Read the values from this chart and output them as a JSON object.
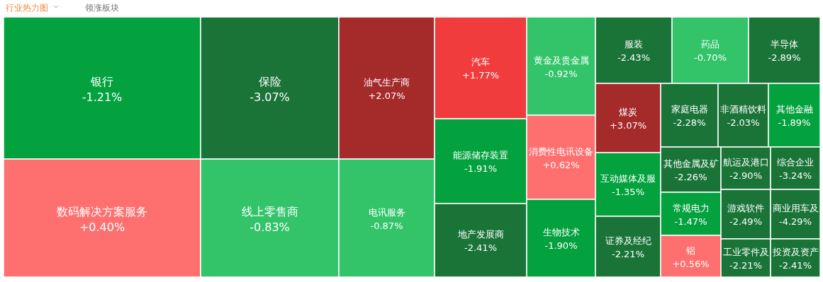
{
  "chart_data": {
    "type": "other",
    "title": "行业热力图",
    "subtitle": "领涨板块",
    "categories": [
      "银行",
      "数码解决方案服务",
      "保险",
      "线上零售商",
      "油气生产商",
      "电讯服务",
      "汽车",
      "能源储存装置",
      "地产发展商",
      "黄金及贵金属",
      "消费性电讯设备",
      "生物技术",
      "服装",
      "药品",
      "半导体",
      "煤炭",
      "互动媒体及服",
      "证券及经纪",
      "家庭电器",
      "非酒精饮料",
      "其他金融",
      "其他金属及矿",
      "常规电力",
      "铝",
      "航运及港口",
      "游戏软件",
      "工业零件及",
      "综合企业",
      "商业用车及",
      "投资及资产"
    ],
    "values": [
      -1.21,
      0.4,
      -3.07,
      -0.83,
      2.07,
      -0.87,
      1.77,
      -1.91,
      -2.41,
      -0.92,
      0.62,
      -1.9,
      -2.43,
      -0.7,
      -2.89,
      3.07,
      -1.35,
      -2.21,
      -2.28,
      -2.03,
      -1.89,
      -2.26,
      -1.47,
      0.56,
      -2.9,
      -2.49,
      -2.21,
      -3.24,
      -4.29,
      -2.41
    ],
    "value_labels": [
      "-1.21%",
      "+0.40%",
      "-3.07%",
      "-0.83%",
      "+2.07%",
      "-0.87%",
      "+1.77%",
      "-1.91%",
      "-2.41%",
      "-0.92%",
      "+0.62%",
      "-1.90%",
      "-2.43%",
      "-0.70%",
      "-2.89%",
      "+3.07%",
      "-1.35%",
      "-2.21%",
      "-2.28%",
      "-2.03%",
      "-1.89%",
      "-2.26%",
      "-1.47%",
      "+0.56%",
      "-2.90%",
      "-2.49%",
      "-2.21%",
      "-3.24%",
      "-4.29%",
      "-2.41%"
    ]
  }
}
